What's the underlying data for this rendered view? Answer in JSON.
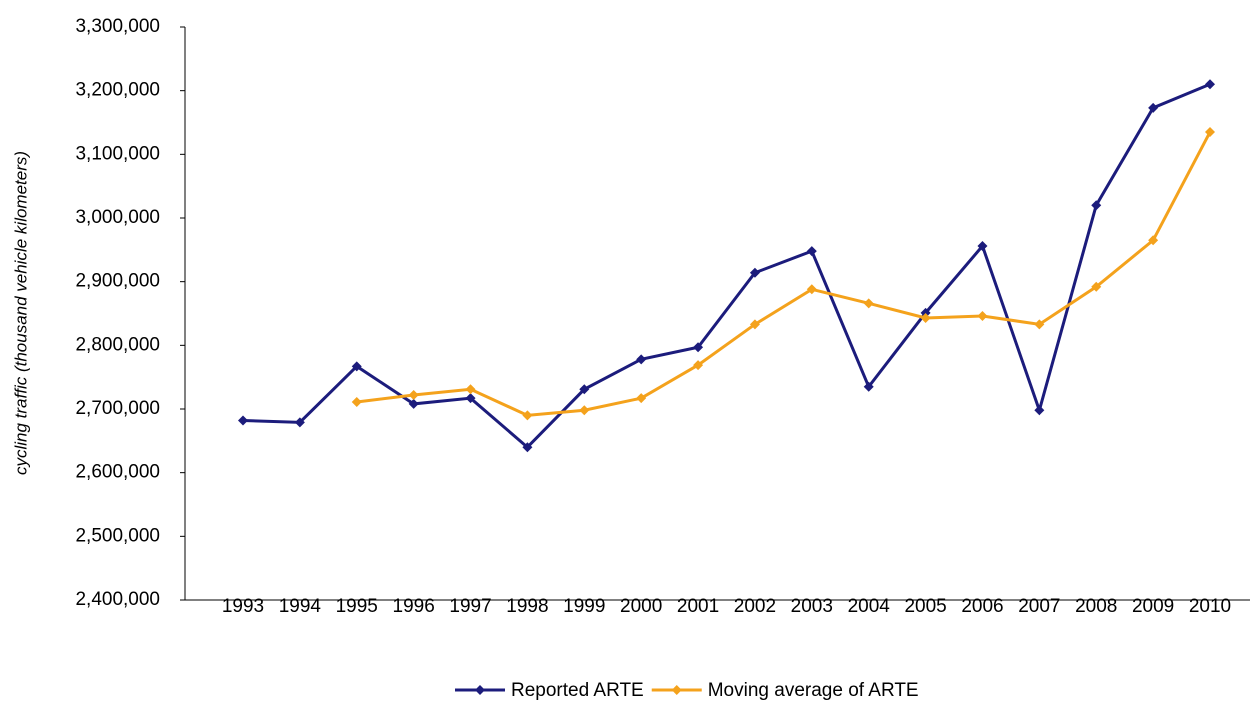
{
  "chart_data": {
    "type": "line",
    "y_label": "cycling traffic (thousand vehicle kilometers)",
    "categories": [
      "1993",
      "1994",
      "1995",
      "1996",
      "1997",
      "1998",
      "1999",
      "2000",
      "2001",
      "2002",
      "2003",
      "2004",
      "2005",
      "2006",
      "2007",
      "2008",
      "2009",
      "2010"
    ],
    "series": [
      {
        "name": "Reported ARTE",
        "color": "#1c1c7c",
        "values": [
          2682000,
          2679000,
          2767000,
          2708000,
          2717000,
          2640000,
          2731000,
          2778000,
          2797000,
          2914000,
          2948000,
          2735000,
          2851000,
          2956000,
          2698000,
          3020000,
          3173000,
          3210000
        ]
      },
      {
        "name": "Moving average of ARTE",
        "color": "#f4a21c",
        "values": [
          null,
          null,
          2711000,
          2722000,
          2731000,
          2690000,
          2698000,
          2717000,
          2769000,
          2833000,
          2888000,
          2866000,
          2843000,
          2846000,
          2833000,
          2892000,
          2965000,
          3135000
        ]
      }
    ],
    "ylim": [
      2400000,
      3300000
    ],
    "yticks": [
      {
        "value": 2400000,
        "label": "2,400,000"
      },
      {
        "value": 2500000,
        "label": "2,500,000"
      },
      {
        "value": 2600000,
        "label": "2,600,000"
      },
      {
        "value": 2700000,
        "label": "2,700,000"
      },
      {
        "value": 2800000,
        "label": "2,800,000"
      },
      {
        "value": 2900000,
        "label": "2,900,000"
      },
      {
        "value": 3000000,
        "label": "3,000,000"
      },
      {
        "value": 3100000,
        "label": "3,100,000"
      },
      {
        "value": 3200000,
        "label": "3,200,000"
      },
      {
        "value": 3300000,
        "label": "3,300,000"
      }
    ],
    "legend": "bottom"
  }
}
